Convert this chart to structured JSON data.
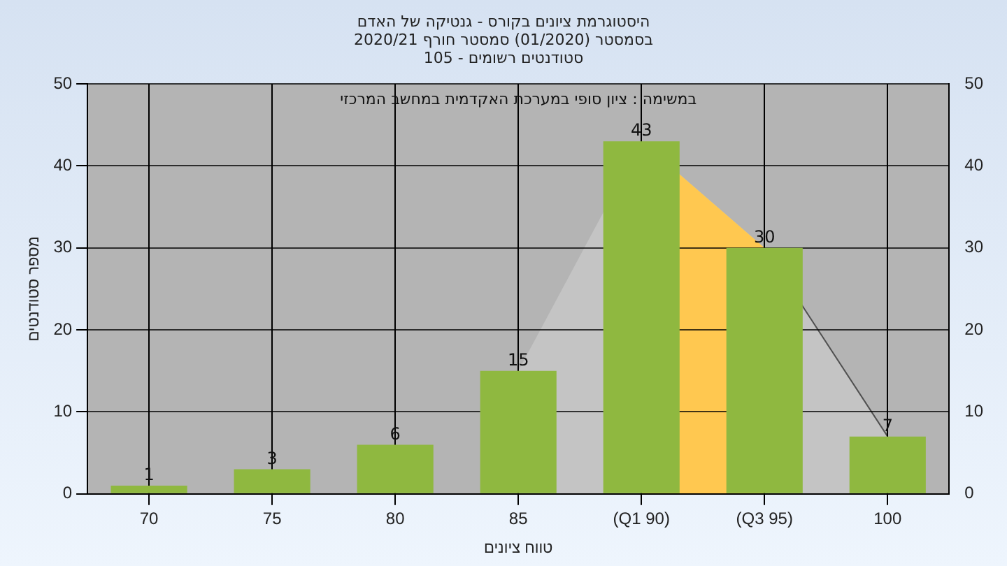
{
  "chart_data": {
    "type": "bar",
    "title": "היסטוגרמת ציונים בקורס - גנטיקה של האדם\nבסמסטר  (01/2020)  סמסטר חורף 2020/21\nסטודנטים רשומים - 105",
    "xlabel": "טווח ציונים",
    "ylabel": "מספר סטודנטים",
    "annotations": [
      "במשימה : ציון סופי במערכת האקדמית במחשב המרכזי"
    ],
    "categories": [
      "70",
      "75",
      "80",
      "85",
      "(Q1 90)",
      "(Q3 95)",
      "100"
    ],
    "color": "#8fb840",
    "values": [
      1,
      3,
      6,
      15,
      43,
      30,
      7
    ],
    "ylim": [
      0,
      50
    ],
    "yticks": [
      0,
      10,
      20,
      30,
      40,
      50
    ],
    "y2lim": [
      0,
      50
    ],
    "y2ticks": [
      0,
      10,
      20,
      30,
      40,
      50
    ],
    "bands": [
      {
        "axis": "x",
        "from": "(Q1 90)",
        "to": "(Q3 95)",
        "color": "#ffc850"
      }
    ],
    "grid": true,
    "legend": false,
    "data_labels": true
  }
}
